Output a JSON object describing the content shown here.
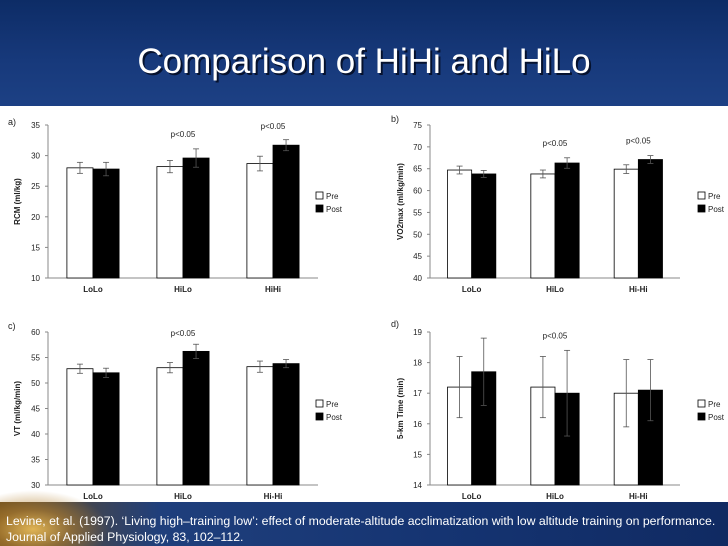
{
  "slide": {
    "title": "Comparison of HiHi and HiLo",
    "citation": "Levine, et al. (1997). ‘Living high–training low’: effect of moderate-altitude acclimatization with low altitude training on performance. Journal of Applied Physiology, 83, 102–112."
  },
  "colors": {
    "title_band": "#17397b",
    "footer_band": "#153472",
    "pre_fill": "#ffffff",
    "post_fill": "#000000"
  },
  "chart_data": [
    {
      "type": "bar",
      "panel_label": "a)",
      "ylabel": "RCM (ml/kg)",
      "categories": [
        "LoLo",
        "HiLo",
        "HiHi"
      ],
      "series": [
        {
          "name": "Pre",
          "values": [
            28.0,
            28.2,
            28.7
          ],
          "errors": [
            0.9,
            1.0,
            1.2
          ]
        },
        {
          "name": "Post",
          "values": [
            27.8,
            29.6,
            31.7
          ],
          "errors": [
            1.1,
            1.5,
            0.9
          ]
        }
      ],
      "ylim": [
        10,
        35
      ],
      "yticks": [
        10,
        15,
        20,
        25,
        30,
        35
      ],
      "annotations": [
        {
          "text": "p<0.05",
          "category": "HiLo"
        },
        {
          "text": "p<0.05",
          "category": "HiHi"
        }
      ],
      "legend": "right"
    },
    {
      "type": "bar",
      "panel_label": "b)",
      "ylabel": "VO2max (ml/kg/min)",
      "categories": [
        "LoLo",
        "HiLo",
        "Hi-Hi"
      ],
      "series": [
        {
          "name": "Pre",
          "values": [
            64.7,
            63.8,
            64.9
          ],
          "errors": [
            0.9,
            0.9,
            1.0
          ]
        },
        {
          "name": "Post",
          "values": [
            63.8,
            66.3,
            67.1
          ],
          "errors": [
            0.8,
            1.2,
            0.9
          ]
        }
      ],
      "ylim": [
        40,
        75
      ],
      "yticks": [
        40,
        45,
        50,
        55,
        60,
        65,
        70,
        75
      ],
      "annotations": [
        {
          "text": "p<0.05",
          "category": "HiLo"
        },
        {
          "text": "p<0.05",
          "category": "Hi-Hi"
        }
      ],
      "legend": "right"
    },
    {
      "type": "bar",
      "panel_label": "c)",
      "ylabel": "VT (ml/kg/min)",
      "categories": [
        "LoLo",
        "HiLo",
        "Hi-Hi"
      ],
      "series": [
        {
          "name": "Pre",
          "values": [
            52.8,
            53.0,
            53.2
          ],
          "errors": [
            0.9,
            1.0,
            1.1
          ]
        },
        {
          "name": "Post",
          "values": [
            52.0,
            56.2,
            53.8
          ],
          "errors": [
            0.9,
            1.4,
            0.8
          ]
        }
      ],
      "ylim": [
        30,
        60
      ],
      "yticks": [
        30,
        35,
        40,
        45,
        50,
        55,
        60
      ],
      "annotations": [
        {
          "text": "p<0.05",
          "category": "HiLo"
        }
      ],
      "legend": "right"
    },
    {
      "type": "bar",
      "panel_label": "d)",
      "ylabel": "5-km Time (min)",
      "categories": [
        "LoLo",
        "HiLo",
        "Hi-Hi"
      ],
      "series": [
        {
          "name": "Pre",
          "values": [
            17.2,
            17.2,
            17.0
          ],
          "errors": [
            1.0,
            1.0,
            1.1
          ]
        },
        {
          "name": "Post",
          "values": [
            17.7,
            17.0,
            17.1
          ],
          "errors": [
            1.1,
            1.4,
            1.0
          ]
        }
      ],
      "ylim": [
        14,
        19
      ],
      "yticks": [
        14,
        15,
        16,
        17,
        18,
        19
      ],
      "annotations": [
        {
          "text": "p<0.05",
          "category": "HiLo"
        }
      ],
      "legend": "right"
    }
  ]
}
